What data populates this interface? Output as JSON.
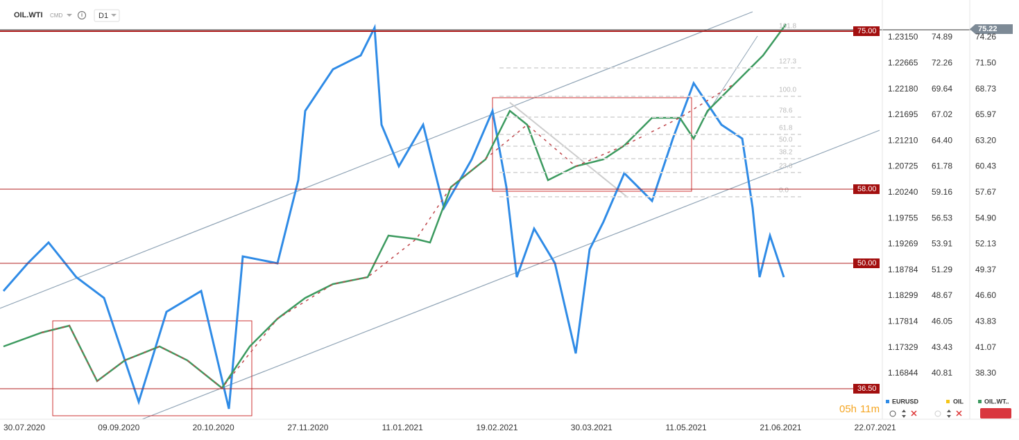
{
  "header": {
    "symbol": "OIL.WTI",
    "badge": "CMD",
    "info": "i",
    "interval": "D1"
  },
  "current_price": "75.22",
  "scales": {
    "eurusd": [
      "1.23150",
      "1.22665",
      "1.22180",
      "1.21695",
      "1.21210",
      "1.20725",
      "1.20240",
      "1.19755",
      "1.19269",
      "1.18784",
      "1.18299",
      "1.17814",
      "1.17329",
      "1.16844"
    ],
    "oil": [
      "74.89",
      "72.26",
      "69.64",
      "67.02",
      "64.40",
      "61.78",
      "59.16",
      "56.53",
      "53.91",
      "51.29",
      "48.67",
      "46.05",
      "43.43",
      "40.81"
    ],
    "oil_wti": [
      "74.26",
      "71.50",
      "68.73",
      "65.97",
      "63.20",
      "60.43",
      "57.67",
      "54.90",
      "52.13",
      "49.37",
      "46.60",
      "43.83",
      "41.07",
      "38.30"
    ]
  },
  "levels": [
    "75.00",
    "58.00",
    "50.00",
    "36.50"
  ],
  "fib_labels": [
    "161.8",
    "127.3",
    "100.0",
    "78.6",
    "61.8",
    "50.0",
    "38.2",
    "23.6",
    "0.0"
  ],
  "dates": [
    "30.07.2020",
    "09.09.2020",
    "20.10.2020",
    "27.11.2020",
    "11.01.2021",
    "19.02.2021",
    "30.03.2021",
    "11.05.2021",
    "21.06.2021",
    "22.07.2021"
  ],
  "timer": {
    "hours": "05h",
    "minutes": "11m"
  },
  "legend": [
    "EURUSD",
    "OIL",
    "OIL.WT.."
  ]
}
